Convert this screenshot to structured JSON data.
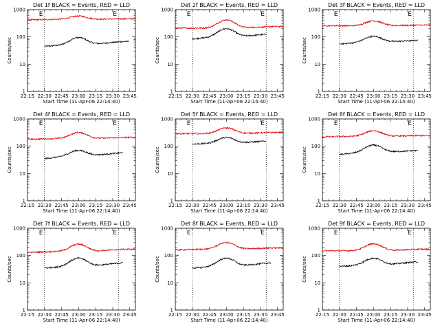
{
  "colors": {
    "events": "#000000",
    "lld": "#dd0000",
    "axis": "#000000",
    "background": "#ffffff"
  },
  "chart_data": [
    {
      "type": "line",
      "title": "Det 1f BLACK = Events, RED = LLD",
      "ylabel": "Counts/sec",
      "xlabel": "Start Time (11-Apr-06 22:14:40)",
      "xticks": [
        "22:15",
        "22:30",
        "22:45",
        "23:00",
        "23:15",
        "23:30",
        "23:45"
      ],
      "yticks": [
        "1",
        "10",
        "100",
        "1000"
      ],
      "xlim_min": [
        0,
        95
      ],
      "ylim": [
        1,
        1000
      ],
      "ylog": true,
      "vlines_min": [
        15,
        80
      ],
      "markers": [
        "E",
        "E"
      ],
      "series": [
        {
          "name": "Events",
          "x_start_min": 15,
          "x_end_min": 89,
          "base": 45,
          "peak": 95,
          "trough": 52,
          "end": 68
        },
        {
          "name": "LLD",
          "x_start_min": 0,
          "x_end_min": 95,
          "base": 420,
          "peak": 580,
          "trough": 440,
          "end": 460
        }
      ]
    },
    {
      "type": "line",
      "title": "Det 2f BLACK = Events, RED = LLD",
      "ylabel": "Counts/sec",
      "xlabel": "Start Time (11-Apr-06 22:14:40)",
      "xticks": [
        "22:15",
        "22:30",
        "22:45",
        "23:00",
        "23:15",
        "23:30",
        "23:45"
      ],
      "yticks": [
        "1",
        "10",
        "100",
        "1000"
      ],
      "xlim_min": [
        0,
        95
      ],
      "ylim": [
        1,
        1000
      ],
      "ylog": true,
      "vlines_min": [
        15,
        80
      ],
      "markers": [
        "E",
        "E"
      ],
      "series": [
        {
          "name": "Events",
          "x_start_min": 15,
          "x_end_min": 80,
          "base": 85,
          "peak": 200,
          "trough": 100,
          "end": 130
        },
        {
          "name": "LLD",
          "x_start_min": 0,
          "x_end_min": 95,
          "base": 210,
          "peak": 420,
          "trough": 210,
          "end": 240
        }
      ]
    },
    {
      "type": "line",
      "title": "Det 3f BLACK = Events, RED = LLD",
      "ylabel": "Counts/sec",
      "xlabel": "Start Time (11-Apr-06 22:14:40)",
      "xticks": [
        "22:15",
        "22:30",
        "22:45",
        "23:00",
        "23:15",
        "23:30",
        "23:45"
      ],
      "yticks": [
        "1",
        "10",
        "100",
        "1000"
      ],
      "xlim_min": [
        0,
        95
      ],
      "ylim": [
        1,
        1000
      ],
      "ylog": true,
      "vlines_min": [
        15,
        80
      ],
      "markers": [
        "E",
        "E"
      ],
      "series": [
        {
          "name": "Events",
          "x_start_min": 15,
          "x_end_min": 84,
          "base": 55,
          "peak": 105,
          "trough": 65,
          "end": 75
        },
        {
          "name": "LLD",
          "x_start_min": 0,
          "x_end_min": 95,
          "base": 260,
          "peak": 390,
          "trough": 255,
          "end": 270
        }
      ]
    },
    {
      "type": "line",
      "title": "Det 4f BLACK = Events, RED = LLD",
      "ylabel": "Counts/sec",
      "xlabel": "Start Time (11-Apr-06 22:14:40)",
      "xticks": [
        "22:15",
        "22:30",
        "22:45",
        "23:00",
        "23:15",
        "23:30",
        "23:45"
      ],
      "yticks": [
        "1",
        "10",
        "100",
        "1000"
      ],
      "xlim_min": [
        0,
        95
      ],
      "ylim": [
        1,
        1000
      ],
      "ylog": true,
      "vlines_min": [
        15,
        80
      ],
      "markers": [
        "E",
        "E"
      ],
      "series": [
        {
          "name": "Events",
          "x_start_min": 15,
          "x_end_min": 84,
          "base": 35,
          "peak": 70,
          "trough": 45,
          "end": 58
        },
        {
          "name": "LLD",
          "x_start_min": 0,
          "x_end_min": 95,
          "base": 180,
          "peak": 320,
          "trough": 190,
          "end": 210
        }
      ]
    },
    {
      "type": "line",
      "title": "Det 5f BLACK = Events, RED = LLD",
      "ylabel": "Counts/sec",
      "xlabel": "Start Time (11-Apr-06 22:14:40)",
      "xticks": [
        "22:15",
        "22:30",
        "22:45",
        "23:00",
        "23:15",
        "23:30",
        "23:45"
      ],
      "yticks": [
        "1",
        "10",
        "100",
        "1000"
      ],
      "xlim_min": [
        0,
        95
      ],
      "ylim": [
        1,
        1000
      ],
      "ylog": true,
      "vlines_min": [
        15,
        80
      ],
      "markers": [
        "E",
        "E"
      ],
      "series": [
        {
          "name": "Events",
          "x_start_min": 15,
          "x_end_min": 80,
          "base": 120,
          "peak": 210,
          "trough": 130,
          "end": 160
        },
        {
          "name": "LLD",
          "x_start_min": 0,
          "x_end_min": 95,
          "base": 290,
          "peak": 470,
          "trough": 290,
          "end": 320
        }
      ]
    },
    {
      "type": "line",
      "title": "Det 6f BLACK = Events, RED = LLD",
      "ylabel": "Counts/sec",
      "xlabel": "Start Time (11-Apr-06 22:14:40)",
      "xticks": [
        "22:15",
        "22:30",
        "22:45",
        "23:00",
        "23:15",
        "23:30",
        "23:45"
      ],
      "yticks": [
        "1",
        "10",
        "100",
        "1000"
      ],
      "xlim_min": [
        0,
        95
      ],
      "ylim": [
        1,
        1000
      ],
      "ylog": true,
      "vlines_min": [
        15,
        80
      ],
      "markers": [
        "E",
        "E"
      ],
      "series": [
        {
          "name": "Events",
          "x_start_min": 15,
          "x_end_min": 84,
          "base": 50,
          "peak": 110,
          "trough": 60,
          "end": 70
        },
        {
          "name": "LLD",
          "x_start_min": 0,
          "x_end_min": 95,
          "base": 220,
          "peak": 370,
          "trough": 230,
          "end": 245
        }
      ]
    },
    {
      "type": "line",
      "title": "Det 7f BLACK = Events, RED = LLD",
      "ylabel": "Counts/sec",
      "xlabel": "Start Time (11-Apr-06 22:14:40)",
      "xticks": [
        "22:15",
        "22:30",
        "22:45",
        "23:00",
        "23:15",
        "23:30",
        "23:45"
      ],
      "yticks": [
        "1",
        "10",
        "100",
        "1000"
      ],
      "xlim_min": [
        0,
        95
      ],
      "ylim": [
        1,
        1000
      ],
      "ylog": true,
      "vlines_min": [
        15,
        80
      ],
      "markers": [
        "E",
        "E"
      ],
      "series": [
        {
          "name": "Events",
          "x_start_min": 15,
          "x_end_min": 84,
          "base": 35,
          "peak": 80,
          "trough": 40,
          "end": 55
        },
        {
          "name": "LLD",
          "x_start_min": 0,
          "x_end_min": 95,
          "base": 130,
          "peak": 260,
          "trough": 140,
          "end": 170
        }
      ]
    },
    {
      "type": "line",
      "title": "Det 8f BLACK = Events, RED = LLD",
      "ylabel": "Counts/sec",
      "xlabel": "Start Time (11-Apr-06 22:14:40)",
      "xticks": [
        "22:15",
        "22:30",
        "22:45",
        "23:00",
        "23:15",
        "23:30",
        "23:45"
      ],
      "yticks": [
        "1",
        "10",
        "100",
        "1000"
      ],
      "xlim_min": [
        0,
        95
      ],
      "ylim": [
        1,
        1000
      ],
      "ylog": true,
      "vlines_min": [
        15,
        80
      ],
      "markers": [
        "E",
        "E"
      ],
      "series": [
        {
          "name": "Events",
          "x_start_min": 15,
          "x_end_min": 84,
          "base": 35,
          "peak": 80,
          "trough": 40,
          "end": 55
        },
        {
          "name": "LLD",
          "x_start_min": 0,
          "x_end_min": 95,
          "base": 160,
          "peak": 300,
          "trough": 170,
          "end": 190
        }
      ]
    },
    {
      "type": "line",
      "title": "Det 9f BLACK = Events, RED = LLD",
      "ylabel": "Counts/sec",
      "xlabel": "Start Time (11-Apr-06 22:14:40)",
      "xticks": [
        "22:15",
        "22:30",
        "22:45",
        "23:00",
        "23:15",
        "23:30",
        "23:45"
      ],
      "yticks": [
        "1",
        "10",
        "100",
        "1000"
      ],
      "xlim_min": [
        0,
        95
      ],
      "ylim": [
        1,
        1000
      ],
      "ylog": true,
      "vlines_min": [
        15,
        80
      ],
      "markers": [
        "E",
        "E"
      ],
      "series": [
        {
          "name": "Events",
          "x_start_min": 15,
          "x_end_min": 84,
          "base": 40,
          "peak": 80,
          "trough": 45,
          "end": 60
        },
        {
          "name": "LLD",
          "x_start_min": 0,
          "x_end_min": 95,
          "base": 150,
          "peak": 270,
          "trough": 150,
          "end": 170
        }
      ]
    }
  ]
}
